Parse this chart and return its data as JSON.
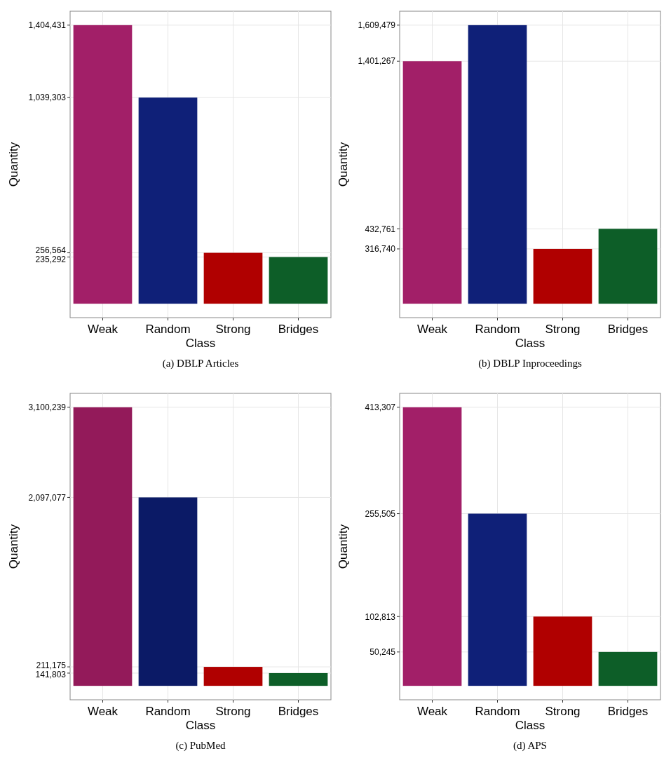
{
  "chart_data": [
    {
      "type": "bar",
      "title": "(a) DBLP Articles",
      "xlabel": "Class",
      "ylabel": "Quantity",
      "categories": [
        "Weak",
        "Random",
        "Strong",
        "Bridges"
      ],
      "values": [
        1404431,
        1039303,
        256564,
        235292
      ],
      "colors": [
        "#a21f68",
        "#0f2078",
        "#b00000",
        "#0d5e28"
      ],
      "ylim": [
        -70222,
        1474653
      ],
      "yticks": [
        {
          "value": 1404431,
          "label": "1,404,431"
        },
        {
          "value": 1039303,
          "label": "1,039,303"
        },
        {
          "value": 256564,
          "label": "256,564"
        },
        {
          "value": 235292,
          "label": "235,292"
        }
      ],
      "grid": true
    },
    {
      "type": "bar",
      "title": "(b) DBLP Inproceedings",
      "xlabel": "Class",
      "ylabel": "Quantity",
      "categories": [
        "Weak",
        "Random",
        "Strong",
        "Bridges"
      ],
      "values": [
        1401267,
        1609479,
        316740,
        432761
      ],
      "colors": [
        "#a21f68",
        "#0f2078",
        "#b00000",
        "#0d5e28"
      ],
      "ylim": [
        -80474,
        1689953
      ],
      "yticks": [
        {
          "value": 1609479,
          "label": "1,609,479"
        },
        {
          "value": 1401267,
          "label": "1,401,267"
        },
        {
          "value": 432761,
          "label": "432,761"
        },
        {
          "value": 316740,
          "label": "316,740"
        }
      ],
      "grid": true
    },
    {
      "type": "bar",
      "title": "(c) PubMed",
      "xlabel": "Class",
      "ylabel": "Quantity",
      "categories": [
        "Weak",
        "Random",
        "Strong",
        "Bridges"
      ],
      "values": [
        3100239,
        2097077,
        211175,
        141803
      ],
      "colors": [
        "#931a5a",
        "#0b1a66",
        "#b00000",
        "#0d5e28"
      ],
      "ylim": [
        -155012,
        3255251
      ],
      "yticks": [
        {
          "value": 3100239,
          "label": "3,100,239"
        },
        {
          "value": 2097077,
          "label": "2,097,077"
        },
        {
          "value": 211175,
          "label": "211,175"
        },
        {
          "value": 141803,
          "label": "141,803"
        }
      ],
      "grid": true
    },
    {
      "type": "bar",
      "title": "(d) APS",
      "xlabel": "Class",
      "ylabel": "Quantity",
      "categories": [
        "Weak",
        "Random",
        "Strong",
        "Bridges"
      ],
      "values": [
        413307,
        255505,
        102813,
        50245
      ],
      "colors": [
        "#a21f68",
        "#0f2078",
        "#b00000",
        "#0d5e28"
      ],
      "ylim": [
        -20665,
        433972
      ],
      "yticks": [
        {
          "value": 413307,
          "label": "413,307"
        },
        {
          "value": 255505,
          "label": "255,505"
        },
        {
          "value": 102813,
          "label": "102,813"
        },
        {
          "value": 50245,
          "label": "50,245"
        }
      ],
      "grid": true
    }
  ]
}
